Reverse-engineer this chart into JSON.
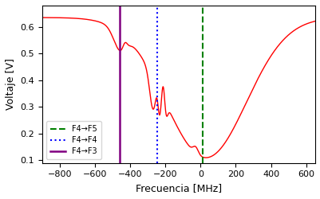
{
  "title": "",
  "xlabel": "Frecuencia [MHz]",
  "ylabel": "Voltaje [V]",
  "xlim": [
    -900,
    650
  ],
  "ylim": [
    0.09,
    0.68
  ],
  "vlines": {
    "F4_F5": {
      "x": 10,
      "color": "#008000",
      "linestyle": "--",
      "label": "F4→F5"
    },
    "F4_F4": {
      "x": -245,
      "color": "blue",
      "linestyle": ":",
      "label": "F4→F4"
    },
    "F4_F3": {
      "x": -462,
      "color": "purple",
      "linestyle": "-",
      "label": "F4→F3"
    }
  },
  "curve_color": "red",
  "background": "#ffffff",
  "xticks": [
    -800,
    -600,
    -400,
    -200,
    0,
    200,
    400,
    600
  ],
  "legend_loc": "lower left"
}
